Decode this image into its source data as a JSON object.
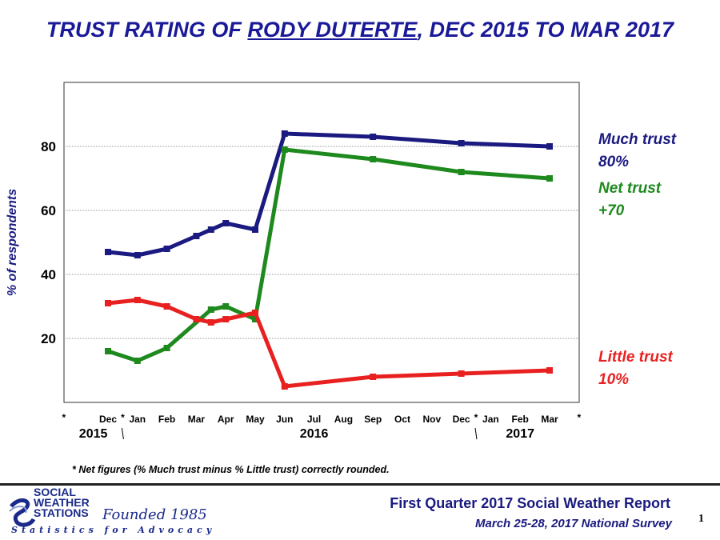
{
  "title": {
    "prefix": "TRUST RATING OF ",
    "name": "RODY DUTERTE",
    "suffix": ", DEC 2015 TO MAR 2017"
  },
  "chart_data": {
    "type": "line",
    "ylabel": "% of respondents",
    "yticks": [
      20,
      40,
      60,
      80
    ],
    "ylim": [
      0,
      100
    ],
    "grid": true,
    "x_categories": [
      "Dec",
      "Jan",
      "Feb",
      "Mar",
      "Apr",
      "May",
      "Jun",
      "Jul",
      "Aug",
      "Sep",
      "Oct",
      "Nov",
      "Dec",
      "Jan",
      "Feb",
      "Mar"
    ],
    "asterisk_ticks": [
      "*",
      "*",
      "*",
      "*"
    ],
    "year_labels": [
      "2015",
      "2016",
      "2017"
    ],
    "series": [
      {
        "name": "Much trust",
        "color": "#1a1a80",
        "end_label": [
          "Much trust",
          "80%"
        ],
        "points": [
          {
            "x": 0,
            "y": 47
          },
          {
            "x": 1,
            "y": 46
          },
          {
            "x": 2,
            "y": 48
          },
          {
            "x": 3,
            "y": 52
          },
          {
            "x": 3.5,
            "y": 54
          },
          {
            "x": 4,
            "y": 56
          },
          {
            "x": 5,
            "y": 54
          },
          {
            "x": 6,
            "y": 84
          },
          {
            "x": 9,
            "y": 83
          },
          {
            "x": 12,
            "y": 81
          },
          {
            "x": 15,
            "y": 80
          }
        ]
      },
      {
        "name": "Net trust",
        "color": "#1e8a1e",
        "end_label": [
          "Net trust",
          "+70"
        ],
        "points": [
          {
            "x": 0,
            "y": 16
          },
          {
            "x": 1,
            "y": 13
          },
          {
            "x": 2,
            "y": 17
          },
          {
            "x": 3.5,
            "y": 29
          },
          {
            "x": 4,
            "y": 30
          },
          {
            "x": 5,
            "y": 26
          },
          {
            "x": 6,
            "y": 79
          },
          {
            "x": 9,
            "y": 76
          },
          {
            "x": 12,
            "y": 72
          },
          {
            "x": 15,
            "y": 70
          }
        ]
      },
      {
        "name": "Little trust",
        "color": "#e82020",
        "end_label": [
          "Little trust",
          "10%"
        ],
        "points": [
          {
            "x": 0,
            "y": 31
          },
          {
            "x": 1,
            "y": 32
          },
          {
            "x": 2,
            "y": 30
          },
          {
            "x": 3,
            "y": 26
          },
          {
            "x": 3.5,
            "y": 25
          },
          {
            "x": 4,
            "y": 26
          },
          {
            "x": 5,
            "y": 28
          },
          {
            "x": 6,
            "y": 5
          },
          {
            "x": 9,
            "y": 8
          },
          {
            "x": 12,
            "y": 9
          },
          {
            "x": 15,
            "y": 10
          }
        ]
      }
    ]
  },
  "note": "* Net figures (% Much trust minus % Little trust) correctly rounded.",
  "footer": {
    "logo_text": "SOCIAL\nWEATHER\nSTATIONS",
    "founded": "Founded 1985",
    "tagline": "Statistics for Advocacy",
    "report_title": "First Quarter 2017 Social Weather Report",
    "report_subtitle": "March 25-28, 2017 National Survey",
    "page_number": "1"
  }
}
